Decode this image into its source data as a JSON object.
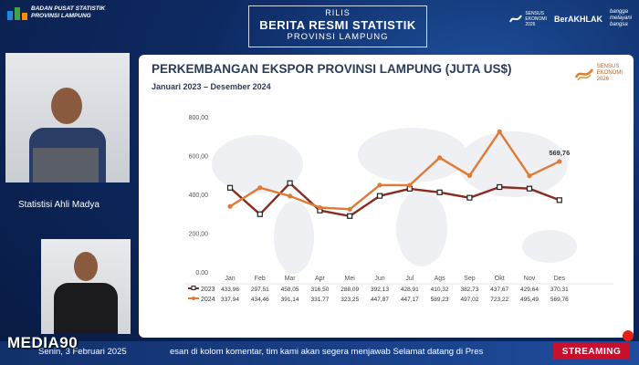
{
  "header": {
    "org_line1": "BADAN PUSAT STATISTIK",
    "org_line2": "PROVINSI LAMPUNG",
    "rilis": "RILIS",
    "rilis_main": "BERITA RESMI STATISTIK",
    "rilis_sub": "PROVINSI LAMPUNG",
    "logo_se_line1": "SENSUS",
    "logo_se_line2": "EKONOMI",
    "logo_se_line3": "2026",
    "logo_akhlak": "BerAKHLAK",
    "logo_bangga_line1": "bangga",
    "logo_bangga_line2": "melayani",
    "logo_bangga_line3": "bangsa"
  },
  "speaker": {
    "label": "Statistisi Ahli Madya"
  },
  "chart_panel": {
    "se_line1": "SENSUS",
    "se_line2": "EKONOMI",
    "se_line3": "2026"
  },
  "chart_data": {
    "type": "line",
    "title": "PERKEMBANGAN EKSPOR PROVINSI LAMPUNG (JUTA US$)",
    "subtitle": "Januari 2023 – Desember 2024",
    "categories": [
      "Jan",
      "Feb",
      "Mar",
      "Apr",
      "Mei",
      "Jun",
      "Jul",
      "Ags",
      "Sep",
      "Okt",
      "Nov",
      "Des"
    ],
    "yticks": [
      "800,00",
      "600,00",
      "400,00",
      "200,00",
      "0,00"
    ],
    "ylim": [
      0,
      800
    ],
    "grid": false,
    "series": [
      {
        "name": "2023",
        "color": "#8b2a1f",
        "values": [
          433.96,
          297.51,
          458.05,
          316.5,
          288.09,
          392.13,
          428.91,
          410.32,
          382.73,
          437.67,
          429.64,
          370.31
        ],
        "labels": [
          "433,96",
          "297,51",
          "458,05",
          "316,50",
          "288,09",
          "392,13",
          "428,91",
          "410,32",
          "382,73",
          "437,67",
          "429,64",
          "370,31"
        ]
      },
      {
        "name": "2024",
        "color": "#e07a35",
        "values": [
          337.94,
          434.46,
          391.14,
          331.77,
          323.25,
          447.87,
          447.17,
          589.23,
          497.02,
          723.22,
          495.49,
          569.76
        ],
        "labels": [
          "337,94",
          "434,46",
          "391,14",
          "331,77",
          "323,25",
          "447,87",
          "447,17",
          "589,23",
          "497,02",
          "723,22",
          "495,49",
          "569,76"
        ]
      }
    ],
    "annotation": "569,76"
  },
  "footer": {
    "date": "Senin, 3 Februari 2025",
    "ticker": "esan di kolom komentar, tim kami akan segera menjawab Selamat datang di Pres",
    "streaming": "STREAMING",
    "watermark": "MEDIA90"
  },
  "colors": {
    "bps_blue": "#1e88e5",
    "bps_green": "#43a047",
    "bps_orange": "#fb8c00",
    "streaming_red": "#c8102e"
  }
}
